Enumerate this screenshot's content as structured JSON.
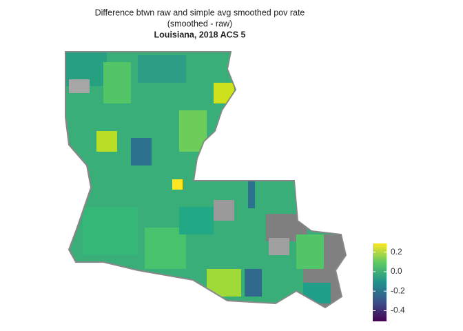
{
  "chart_data": {
    "type": "map",
    "title": [
      "Difference btwn raw and simple avg smoothed pov rate",
      "(smoothed - raw)"
    ],
    "subtitle": "Louisiana, 2018 ACS 5",
    "colorbar": {
      "lim": [
        -0.51,
        0.29
      ],
      "ticks": [
        0.2,
        {
          "value": 0,
          "label": "0.0"
        },
        -0.2,
        -0.4
      ],
      "colors": [
        "#440154",
        "#3b528b",
        "#21908c",
        "#5dc863",
        "#fde725"
      ]
    }
  }
}
